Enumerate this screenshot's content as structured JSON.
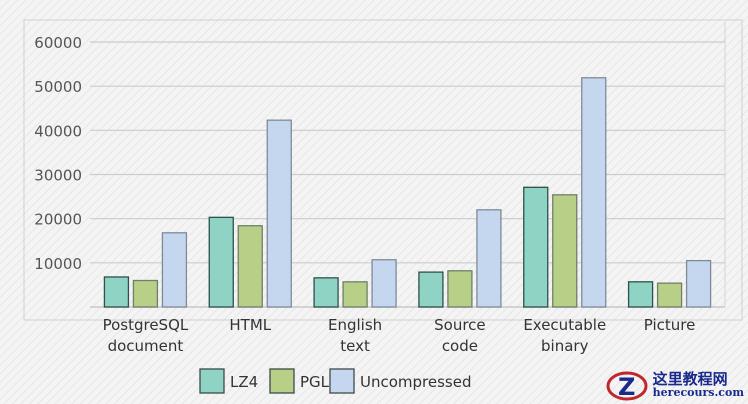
{
  "chart_data": {
    "type": "bar",
    "title": "",
    "xlabel": "",
    "ylabel": "",
    "ylim": [
      0,
      60000
    ],
    "yticks": [
      "10000",
      "20000",
      "30000",
      "40000",
      "50000",
      "60000"
    ],
    "grid": true,
    "legend_position": "bottom",
    "categories": [
      "PostgreSQL\ndocument",
      "HTML",
      "English\ntext",
      "Source\ncode",
      "Executable\nbinary",
      "Picture"
    ],
    "series": [
      {
        "name": "LZ4",
        "color": "#8fd3c4",
        "values": [
          6800,
          20300,
          6600,
          7900,
          27100,
          5700
        ]
      },
      {
        "name": "PGLZ",
        "color": "#b7cf86",
        "values": [
          6000,
          18400,
          5700,
          8200,
          25400,
          5400
        ]
      },
      {
        "name": "Uncompressed",
        "color": "#c5d7ef",
        "values": [
          16800,
          42300,
          10700,
          22000,
          51900,
          10500
        ]
      }
    ]
  },
  "watermark": {
    "line1": "这里教程网",
    "line2": "herecours.com"
  }
}
